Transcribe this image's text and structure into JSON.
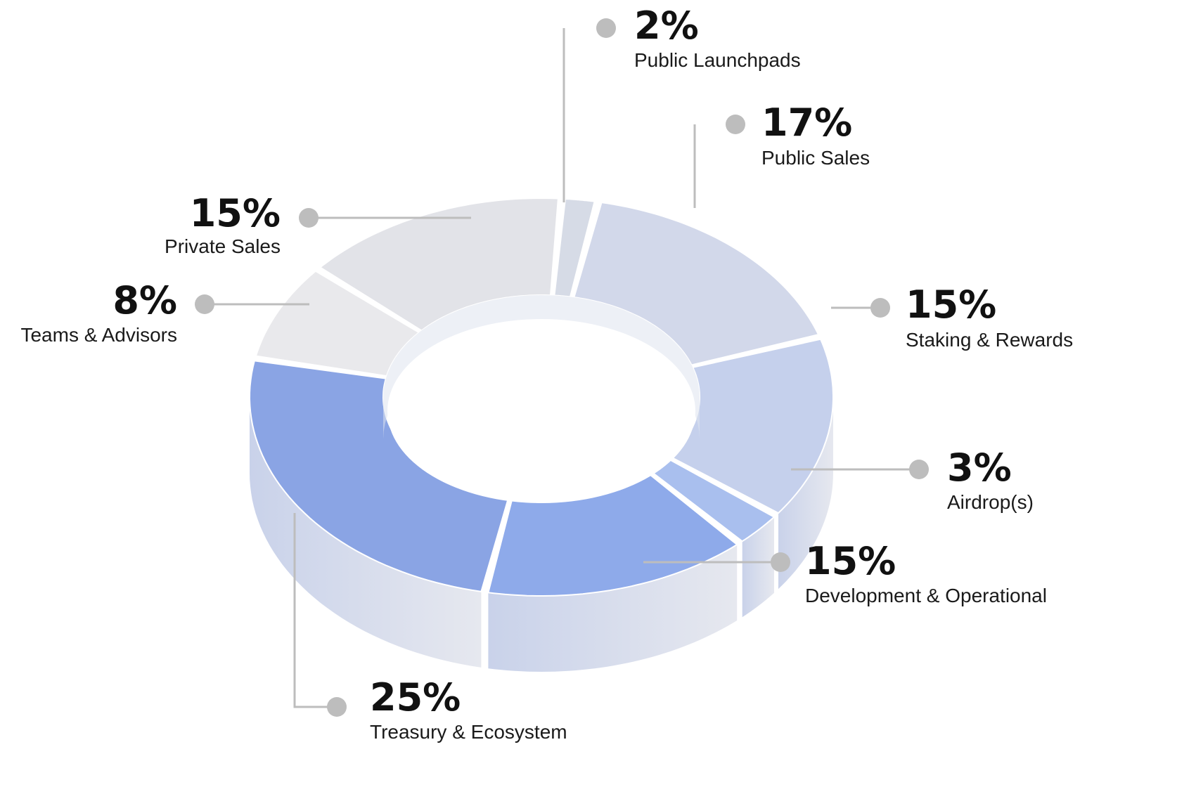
{
  "chart_data": {
    "type": "pie",
    "style": "3d-donut",
    "title": "",
    "slices": [
      {
        "label": "Public Launchpads",
        "value": 2,
        "value_label": "2%",
        "color": "#d6dbe6"
      },
      {
        "label": "Public Sales",
        "value": 17,
        "value_label": "17%",
        "color": "#d2d8ea"
      },
      {
        "label": "Staking & Rewards",
        "value": 15,
        "value_label": "15%",
        "color": "#c5d0ec"
      },
      {
        "label": "Airdrop(s)",
        "value": 3,
        "value_label": "3%",
        "color": "#a9bfee"
      },
      {
        "label": "Development & Operational",
        "value": 15,
        "value_label": "15%",
        "color": "#8eaaea"
      },
      {
        "label": "Treasury & Ecosystem",
        "value": 25,
        "value_label": "25%",
        "color": "#8aa4e4"
      },
      {
        "label": "Teams & Advisors",
        "value": 8,
        "value_label": "8%",
        "color": "#e9e9ec"
      },
      {
        "label": "Private Sales",
        "value": 15,
        "value_label": "15%",
        "color": "#e2e3e8"
      }
    ],
    "legend": "callouts",
    "colors": {
      "connector": "#bdbdbd",
      "dark_blue": "#2f55b8",
      "text": "#111111"
    }
  }
}
